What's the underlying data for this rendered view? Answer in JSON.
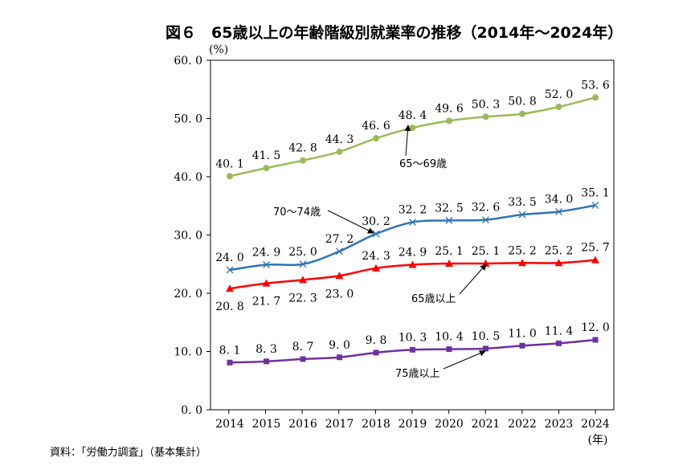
{
  "chart_data": {
    "type": "line",
    "title": "図６　65歳以上の年齢階級別就業率の推移（2014年～2024年）",
    "ylabel": "(%)",
    "xlabel": "(年)",
    "ylim": [
      0,
      60
    ],
    "yticks": [
      "0.0",
      "10.0",
      "20.0",
      "30.0",
      "40.0",
      "50.0",
      "60.0"
    ],
    "categories": [
      "2014",
      "2015",
      "2016",
      "2017",
      "2018",
      "2019",
      "2020",
      "2021",
      "2022",
      "2023",
      "2024"
    ],
    "grid": false,
    "series": [
      {
        "name": "65～69歳",
        "color": "#9BBB59",
        "marker": "circle",
        "values": [
          40.1,
          41.5,
          42.8,
          44.3,
          46.6,
          48.4,
          49.6,
          50.3,
          50.8,
          52.0,
          53.6
        ],
        "labels": [
          "40.1",
          "41.5",
          "42.8",
          "44.3",
          "46.6",
          "48.4",
          "49.6",
          "50.3",
          "50.8",
          "52.0",
          "53.6"
        ]
      },
      {
        "name": "70～74歳",
        "color": "#2E75B6",
        "marker": "x",
        "values": [
          24.0,
          24.9,
          25.0,
          27.2,
          30.2,
          32.2,
          32.5,
          32.6,
          33.5,
          34.0,
          35.1
        ],
        "labels": [
          "24.0",
          "24.9",
          "25.0",
          "27.2",
          "30.2",
          "32.2",
          "32.5",
          "32.6",
          "33.5",
          "34.0",
          "35.1"
        ]
      },
      {
        "name": "65歳以上",
        "color": "#FF0000",
        "marker": "triangle",
        "values": [
          20.8,
          21.7,
          22.3,
          23.0,
          24.3,
          24.9,
          25.1,
          25.1,
          25.2,
          25.2,
          25.7
        ],
        "labels": [
          "20.8",
          "21.7",
          "22.3",
          "23.0",
          "24.3",
          "24.9",
          "25.1",
          "25.1",
          "25.2",
          "25.2",
          "25.7"
        ]
      },
      {
        "name": "75歳以上",
        "color": "#7030A0",
        "marker": "square",
        "values": [
          8.1,
          8.3,
          8.7,
          9.0,
          9.8,
          10.3,
          10.4,
          10.5,
          11.0,
          11.4,
          12.0
        ],
        "labels": [
          "8.1",
          "8.3",
          "8.7",
          "9.0",
          "9.8",
          "10.3",
          "10.4",
          "10.5",
          "11.0",
          "11.4",
          "12.0"
        ]
      }
    ]
  },
  "source": "資料：「労働力調査」（基本集計）"
}
